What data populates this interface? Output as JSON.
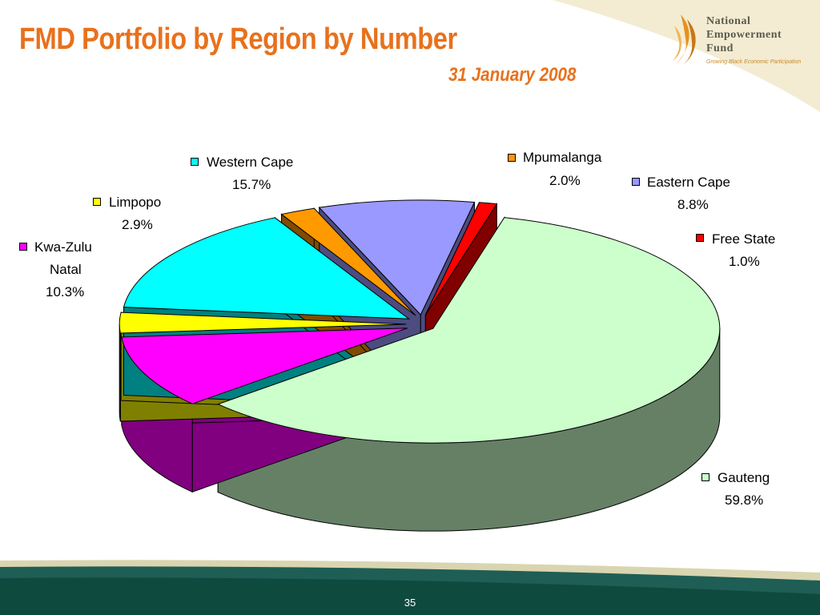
{
  "slide": {
    "title": "FMD Portfolio by Region by Number",
    "subtitle": "31 January 2008",
    "page_number": "35"
  },
  "logo": {
    "line1": "National",
    "line2": "Empowerment",
    "line3": "Fund",
    "tagline": "Growing Black Economic Participation"
  },
  "colors": {
    "title": "#e8711c",
    "footer_green": "#1f5e55",
    "corner_cream": "#f3ecd2"
  },
  "chart_data": {
    "type": "pie",
    "title": "FMD Portfolio by Region by Number",
    "subtitle": "31 January 2008",
    "slices": [
      {
        "name": "Gauteng",
        "pct_label": "59.8%",
        "value": 59.8,
        "color": "#ccffcc",
        "side_color": "#668066"
      },
      {
        "name": "Kwa-Zulu Natal",
        "pct_label": "10.3%",
        "value": 10.3,
        "color": "#ff00ff",
        "side_color": "#800080"
      },
      {
        "name": "Limpopo",
        "pct_label": "2.9%",
        "value": 2.9,
        "color": "#ffff00",
        "side_color": "#808000"
      },
      {
        "name": "Western Cape",
        "pct_label": "15.7%",
        "value": 15.7,
        "color": "#00ffff",
        "side_color": "#008080"
      },
      {
        "name": "Mpumalanga",
        "pct_label": "2.0%",
        "value": 2.0,
        "color": "#ff9900",
        "side_color": "#804c00"
      },
      {
        "name": "Eastern Cape",
        "pct_label": "8.8%",
        "value": 8.8,
        "color": "#9999ff",
        "side_color": "#4c4c80"
      },
      {
        "name": "Free State",
        "pct_label": "1.0%",
        "value": 1.0,
        "color": "#ff0000",
        "side_color": "#800000"
      }
    ],
    "legend": [
      {
        "name": "Western Cape",
        "pct": "15.7%"
      },
      {
        "name": "Limpopo",
        "pct": "2.9%"
      },
      {
        "name": "Kwa-Zulu",
        "name2": "Natal",
        "pct": "10.3%"
      },
      {
        "name": "Mpumalanga",
        "pct": "2.0%"
      },
      {
        "name": "Eastern Cape",
        "pct": "8.8%"
      },
      {
        "name": "Free State",
        "pct": "1.0%"
      },
      {
        "name": "Gauteng",
        "pct": "59.8%"
      }
    ]
  }
}
